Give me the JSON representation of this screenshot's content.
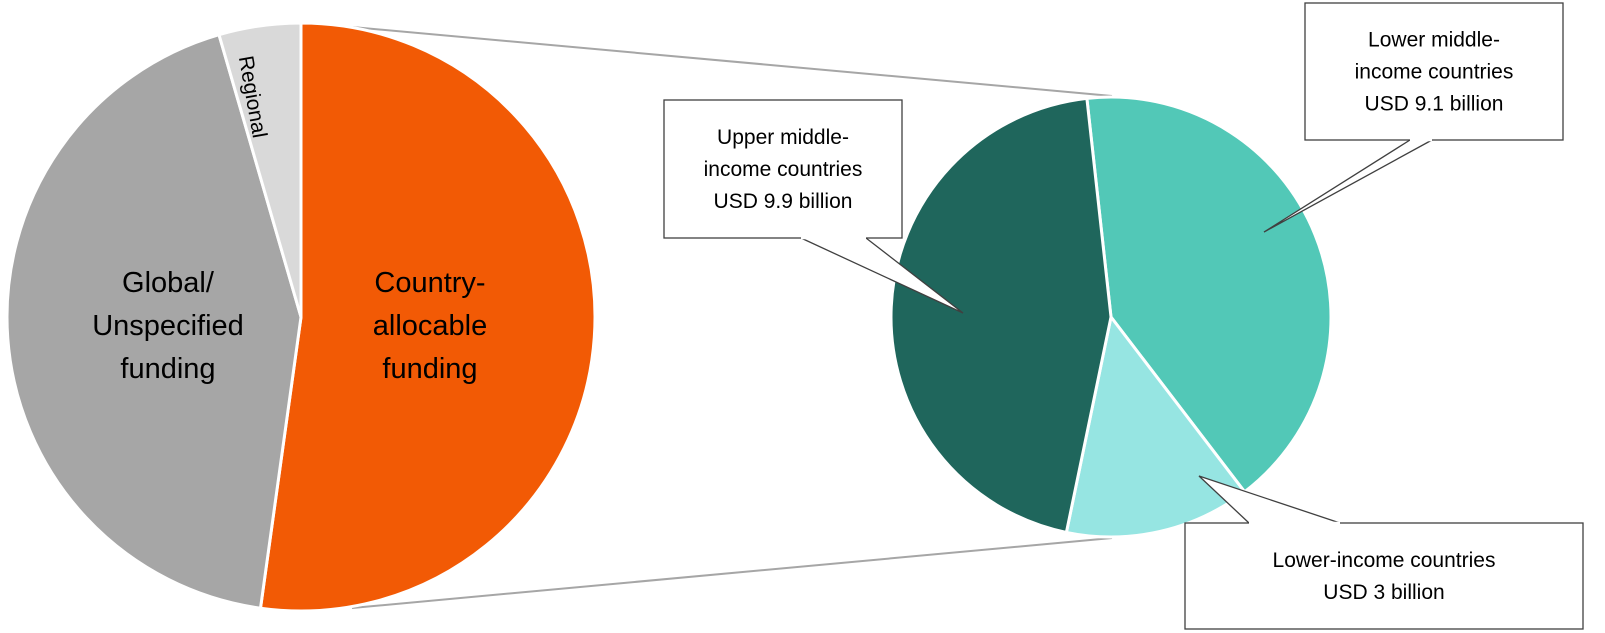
{
  "chart_data": [
    {
      "type": "pie",
      "title": "",
      "slices": [
        {
          "label": "Country-allocable funding",
          "lines": [
            "Country-",
            "allocable",
            "funding"
          ],
          "value": 52.2,
          "color": "#f25a05"
        },
        {
          "label": "Global/ Unspecified funding",
          "lines": [
            "Global/",
            "Unspecified",
            "funding"
          ],
          "value": 43.3,
          "color": "#a6a6a6"
        },
        {
          "label": "Regional",
          "lines": [
            "Regional"
          ],
          "value": 4.5,
          "color": "#d9d9d9"
        }
      ]
    },
    {
      "type": "pie",
      "title": "",
      "unit": "USD billion",
      "slices": [
        {
          "label": "Lower middle-income countries",
          "lines": [
            "Lower middle-",
            "income countries",
            "USD 9.1 billion"
          ],
          "value": 9.1,
          "color": "#52c8b7"
        },
        {
          "label": "Lower-income countries",
          "lines": [
            "Lower-income countries",
            "USD 3 billion"
          ],
          "value": 3,
          "color": "#96e5e2"
        },
        {
          "label": "Upper middle-income countries",
          "lines": [
            "Upper middle-",
            "income countries",
            "USD 9.9 billion"
          ],
          "value": 9.9,
          "color": "#1f665c"
        }
      ]
    }
  ]
}
